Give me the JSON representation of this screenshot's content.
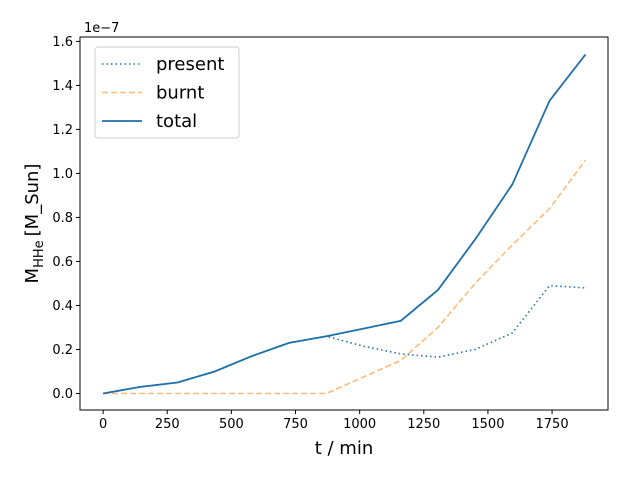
{
  "chart_data": {
    "type": "line",
    "xlabel": "t / min",
    "ylabel_main": "M",
    "ylabel_sub": "HHe",
    "ylabel_unit": "[M_Sun]",
    "y_offset_label": "1e−7",
    "xlim": [
      -90,
      1968
    ],
    "ylim": [
      -0.075,
      1.62
    ],
    "xticks": [
      0,
      250,
      500,
      750,
      1000,
      1250,
      1500,
      1750
    ],
    "yticks": [
      0.0,
      0.2,
      0.4,
      0.6,
      0.8,
      1.0,
      1.2,
      1.4,
      1.6
    ],
    "ytick_labels": [
      "0.0",
      "0.2",
      "0.4",
      "0.6",
      "0.8",
      "1.0",
      "1.2",
      "1.4",
      "1.6"
    ],
    "grid": false,
    "legend_position": "top-left",
    "x": [
      0,
      145,
      290,
      435,
      580,
      725,
      870,
      1015,
      1160,
      1305,
      1450,
      1595,
      1740,
      1880
    ],
    "series": [
      {
        "name": "present",
        "color": "#1f77b4",
        "style": "dotted",
        "values": [
          0.0,
          0.03,
          0.05,
          0.1,
          0.17,
          0.23,
          0.26,
          0.215,
          0.18,
          0.165,
          0.2,
          0.275,
          0.49,
          0.48
        ]
      },
      {
        "name": "burnt",
        "color": "#ffbb78",
        "style": "dashed",
        "values": [
          0.0,
          0.0,
          0.0,
          0.0,
          0.0,
          0.0,
          0.0,
          0.075,
          0.15,
          0.3,
          0.5,
          0.675,
          0.84,
          1.06
        ]
      },
      {
        "name": "total",
        "color": "#1f6fa8",
        "style": "solid",
        "values": [
          0.0,
          0.03,
          0.05,
          0.1,
          0.17,
          0.23,
          0.26,
          0.295,
          0.33,
          0.47,
          0.7,
          0.95,
          1.33,
          1.54
        ]
      }
    ]
  }
}
